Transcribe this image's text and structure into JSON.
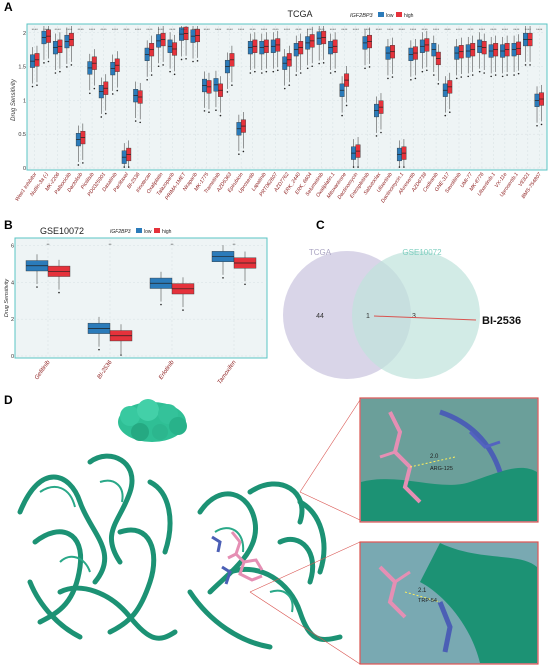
{
  "panels": {
    "a": {
      "letter": "A",
      "title": "TCGA",
      "ylabel": "Drug Sensitivity",
      "legend_title": "IGF2BP3",
      "legend_low": "low",
      "legend_high": "high",
      "sig_mark": "****"
    },
    "b": {
      "letter": "B",
      "title": "GSE10072",
      "ylabel": "Drug Sensitivity",
      "legend_title": "IGF2BP3",
      "legend_low": "low",
      "legend_high": "high",
      "sig_mark": "**"
    },
    "c": {
      "letter": "C",
      "set_left": "TCGA",
      "set_right": "GSE10072",
      "count_left": "44",
      "count_both": "1",
      "count_right": "3",
      "callout": "BI-2536"
    },
    "d": {
      "letter": "D",
      "inset_top_distance": "2.0",
      "inset_top_residue": "ARG-125",
      "inset_bottom_distance": "2.1",
      "inset_bottom_residue": "TRP-54"
    }
  },
  "colors": {
    "low": "#2b7bba",
    "high": "#e5323b",
    "venn_left": "#c9c3de",
    "venn_right": "#bfe3dc",
    "protein": "#1c9274",
    "ligand": "#e58fb4",
    "residue": "#4b5fb5"
  },
  "chart_data": [
    {
      "type": "box",
      "title": "TCGA",
      "ylabel": "Drug Sensitivity",
      "ylim": [
        0,
        2.1
      ],
      "yticks": [
        0,
        0.5,
        1.0,
        1.5,
        2.0
      ],
      "categories": [
        "Wee1 Inhibitor",
        "Nutlin-3a (-)",
        "MK-2206",
        "Palbociclib",
        "Dactolisib",
        "Pictilisib",
        "PD0325901",
        "Dasatinib",
        "Paclitaxel",
        "BI-2536",
        "Irinotecan",
        "Oxaliplatin",
        "Talazoparib",
        "PRIMA-1MET",
        "Niraparib",
        "MK-1775",
        "Trametinib",
        "AZD5363",
        "Epirubicin",
        "Uprosertib",
        "Lapatinib",
        "PRT062607",
        "AZD7762",
        "ERK_2440",
        "ERK_6604",
        "Selumetinib",
        "Oxaliplatin.1",
        "Mitoxantrone",
        "Dactinomycin",
        "Entospletinib",
        "Sabutoclax",
        "Ulixertinib",
        "Dactinomycin.1",
        "Afuresertib",
        "AZD6738",
        "Cediranib",
        "GNE-317",
        "Savolitinib",
        "UMI-77",
        "MK-8776",
        "Ulixertinib.1",
        "VX-11e",
        "Uprosertib.1",
        "VE821",
        "BMS-754807"
      ],
      "series": [
        {
          "name": "low",
          "median": [
            1.58,
            1.93,
            1.78,
            1.87,
            0.42,
            1.48,
            1.13,
            1.47,
            0.16,
            1.07,
            1.68,
            1.88,
            1.8,
            1.98,
            1.95,
            1.22,
            1.23,
            1.5,
            0.58,
            1.78,
            1.78,
            1.8,
            1.55,
            1.75,
            1.85,
            1.92,
            1.78,
            1.15,
            0.22,
            1.85,
            0.85,
            1.7,
            0.2,
            1.68,
            1.8,
            1.75,
            1.15,
            1.7,
            1.73,
            1.8,
            1.73,
            1.73,
            1.75,
            1.9,
            1.0
          ]
        },
        {
          "name": "high",
          "median": [
            1.6,
            1.95,
            1.8,
            1.9,
            0.45,
            1.55,
            1.18,
            1.52,
            0.2,
            1.05,
            1.75,
            1.9,
            1.76,
            1.99,
            1.96,
            1.2,
            1.15,
            1.6,
            0.62,
            1.8,
            1.8,
            1.82,
            1.6,
            1.78,
            1.88,
            1.93,
            1.8,
            1.3,
            0.25,
            1.87,
            0.9,
            1.72,
            0.22,
            1.7,
            1.82,
            1.62,
            1.2,
            1.72,
            1.75,
            1.78,
            1.75,
            1.75,
            1.77,
            1.9,
            1.02
          ]
        }
      ]
    },
    {
      "type": "box",
      "title": "GSE10072",
      "ylabel": "Drug Sensitivity",
      "ylim": [
        0,
        6.3
      ],
      "yticks": [
        0,
        2,
        4,
        6
      ],
      "categories": [
        "Gefitinib",
        "BI-2536",
        "Erlotinib",
        "Tamoxifen"
      ],
      "series": [
        {
          "name": "low",
          "median": [
            4.9,
            1.5,
            3.95,
            5.4
          ]
        },
        {
          "name": "high",
          "median": [
            4.6,
            1.1,
            3.65,
            5.05
          ]
        }
      ]
    }
  ]
}
